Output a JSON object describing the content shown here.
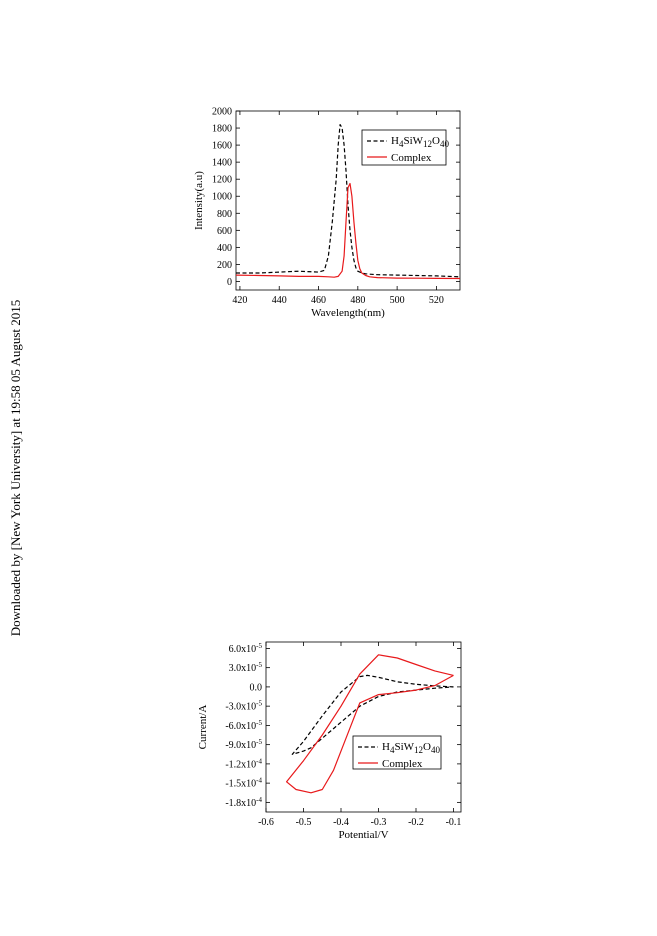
{
  "watermark": "Downloaded by [New York University] at 19:58 05 August 2015",
  "chart_data": [
    {
      "type": "line",
      "title": "",
      "xlabel": "Wavelength(nm)",
      "ylabel": "Intensity(a.u)",
      "xlim": [
        418,
        532
      ],
      "ylim": [
        -100,
        2000
      ],
      "xticks": [
        420,
        440,
        460,
        480,
        500,
        520
      ],
      "yticks": [
        0,
        200,
        400,
        600,
        800,
        1000,
        1200,
        1400,
        1600,
        1800,
        2000
      ],
      "grid": false,
      "legend_position": "top-right",
      "series": [
        {
          "name": "H4SiW12O40",
          "legend_label": {
            "main": "H",
            "sub1": "4",
            "mid": "SiW",
            "sub2": "12",
            "mid2": "O",
            "sub3": "40"
          },
          "style": "dashed",
          "color": "#000000",
          "x": [
            418,
            430,
            440,
            450,
            460,
            463,
            465,
            467,
            469,
            470,
            471,
            472,
            473,
            474,
            475,
            476,
            477,
            478,
            479,
            480,
            482,
            484,
            486,
            490,
            500,
            510,
            520,
            532
          ],
          "y": [
            100,
            100,
            110,
            120,
            110,
            130,
            300,
            700,
            1200,
            1600,
            1840,
            1800,
            1600,
            1300,
            900,
            600,
            400,
            250,
            160,
            120,
            100,
            90,
            85,
            80,
            75,
            70,
            65,
            55
          ]
        },
        {
          "name": "Complex",
          "style": "solid",
          "color": "#e8191b",
          "x": [
            418,
            430,
            440,
            450,
            460,
            465,
            468,
            470,
            472,
            473,
            474,
            475,
            476,
            477,
            478,
            479,
            480,
            481,
            482,
            484,
            486,
            490,
            500,
            510,
            520,
            532
          ],
          "y": [
            75,
            70,
            65,
            60,
            60,
            55,
            50,
            60,
            120,
            300,
            700,
            1100,
            1150,
            1000,
            700,
            450,
            250,
            150,
            100,
            70,
            55,
            45,
            40,
            38,
            36,
            35
          ]
        }
      ]
    },
    {
      "type": "line",
      "title": "",
      "xlabel": "Potential/V",
      "ylabel": "Current/A",
      "xlim": [
        -0.6,
        -0.08
      ],
      "ylim": [
        -0.000195,
        7e-05
      ],
      "xticks": [
        -0.6,
        -0.5,
        -0.4,
        -0.3,
        -0.2,
        -0.1
      ],
      "xtick_labels": [
        "-0.6",
        "-0.5",
        "-0.4",
        "-0.3",
        "-0.2",
        "-0.1"
      ],
      "yticks": [
        6e-05,
        3e-05,
        0.0,
        -3e-05,
        -6e-05,
        -9e-05,
        -0.00012,
        -0.00015,
        -0.00018
      ],
      "ytick_labels": [
        {
          "mant": "6.0x10",
          "exp": "-5"
        },
        {
          "mant": "3.0x10",
          "exp": "-5"
        },
        {
          "mant": "0.0",
          "exp": ""
        },
        {
          "mant": "-3.0x10",
          "exp": "-5"
        },
        {
          "mant": "-6.0x10",
          "exp": "-5"
        },
        {
          "mant": "-9.0x10",
          "exp": "-5"
        },
        {
          "mant": "-1.2x10",
          "exp": "-4"
        },
        {
          "mant": "-1.5x10",
          "exp": "-4"
        },
        {
          "mant": "-1.8x10",
          "exp": "-4"
        }
      ],
      "grid": false,
      "legend_position": "center-right",
      "series": [
        {
          "name": "H4SiW12O40",
          "legend_label": {
            "main": "H",
            "sub1": "4",
            "mid": "SiW",
            "sub2": "12",
            "mid2": "O",
            "sub3": "40"
          },
          "style": "dashed",
          "color": "#000000",
          "x": [
            -0.1,
            -0.15,
            -0.2,
            -0.25,
            -0.3,
            -0.33,
            -0.35,
            -0.4,
            -0.45,
            -0.5,
            -0.53,
            -0.5,
            -0.48,
            -0.45,
            -0.4,
            -0.35,
            -0.3,
            -0.25,
            -0.2,
            -0.15,
            -0.1
          ],
          "y": [
            0.0,
            1.5e-06,
            4e-06,
            8e-06,
            1.5e-05,
            1.8e-05,
            1.6e-05,
            -8e-06,
            -4.5e-05,
            -8.5e-05,
            -0.000105,
            -0.0001,
            -9.5e-05,
            -8e-05,
            -5.5e-05,
            -3e-05,
            -1.5e-05,
            -8e-06,
            -5e-06,
            -2e-06,
            0.0
          ]
        },
        {
          "name": "Complex",
          "style": "solid",
          "color": "#e8191b",
          "x": [
            -0.1,
            -0.15,
            -0.2,
            -0.25,
            -0.3,
            -0.35,
            -0.4,
            -0.45,
            -0.5,
            -0.545,
            -0.52,
            -0.48,
            -0.45,
            -0.42,
            -0.38,
            -0.35,
            -0.3,
            -0.25,
            -0.2,
            -0.15,
            -0.1
          ],
          "y": [
            1.8e-05,
            2.5e-05,
            3.5e-05,
            4.5e-05,
            5e-05,
            2e-05,
            -3e-05,
            -7.5e-05,
            -0.000115,
            -0.000148,
            -0.00016,
            -0.000165,
            -0.00016,
            -0.00013,
            -7e-05,
            -2.5e-05,
            -1.2e-05,
            -9e-06,
            -5e-06,
            2e-06,
            1.8e-05
          ]
        }
      ]
    }
  ]
}
